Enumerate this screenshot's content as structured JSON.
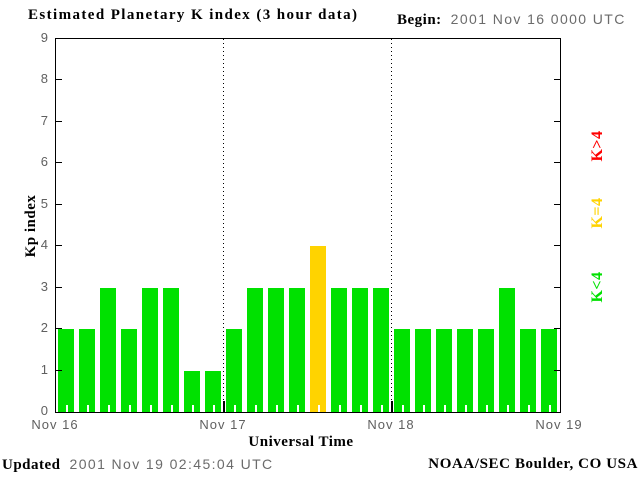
{
  "header": {
    "title": "Estimated Planetary K index (3 hour data)",
    "begin_label": "Begin:",
    "begin_value": "2001 Nov 16 0000 UTC"
  },
  "legend": [
    {
      "label": "K>4",
      "color": "#ff0000"
    },
    {
      "label": "K=4",
      "color": "#ffd300"
    },
    {
      "label": "K<4",
      "color": "#00e100"
    }
  ],
  "footer": {
    "updated_label": "Updated",
    "updated_value": "2001 Nov 19 02:45:04 UTC",
    "credit": "NOAA/SEC Boulder, CO USA"
  },
  "chart_data": {
    "type": "bar",
    "title": "Estimated Planetary K index (3 hour data)",
    "begin": "2001 Nov 16 0000 UTC",
    "xlabel": "Universal Time",
    "ylabel": "Kp index",
    "ylim": [
      0,
      9
    ],
    "yticks": [
      0,
      1,
      2,
      3,
      4,
      5,
      6,
      7,
      8,
      9
    ],
    "x_day_labels": [
      "Nov 16",
      "Nov 17",
      "Nov 18",
      "Nov 19"
    ],
    "hours_per_bar": 3,
    "bars_per_day": 8,
    "values": [
      2,
      2,
      3,
      2,
      3,
      3,
      1,
      1,
      2,
      3,
      3,
      3,
      4,
      3,
      3,
      3,
      2,
      2,
      2,
      2,
      2,
      3,
      2,
      2
    ],
    "color_rule": {
      "below_4": "#00e100",
      "equal_4": "#ffd300",
      "above_4": "#ff0000"
    },
    "grid": "dotted vertical lines at day boundaries",
    "legend_position": "right, rotated"
  }
}
